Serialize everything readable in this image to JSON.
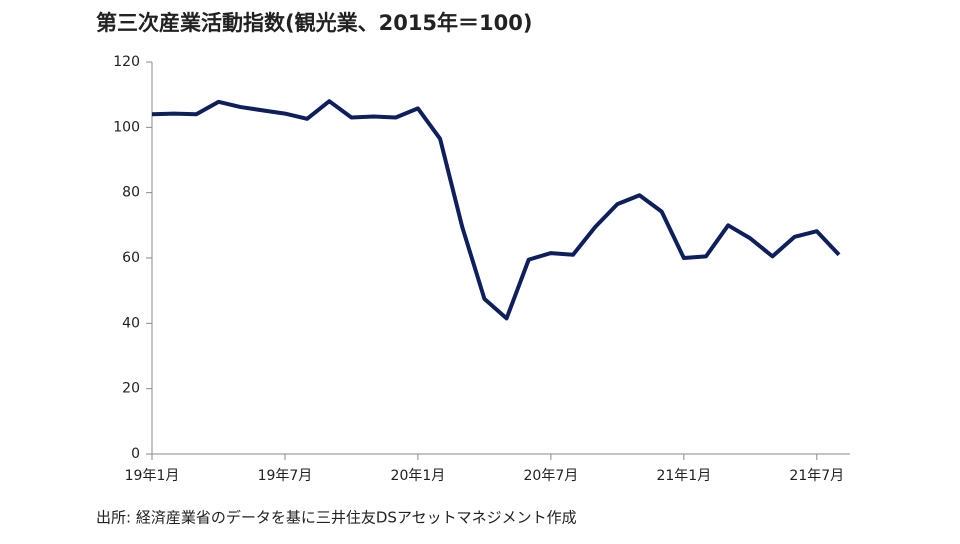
{
  "chart_data": {
    "type": "line",
    "title": "第三次産業活動指数(観光業、2015年＝100)",
    "source": "出所: 経済産業省のデータを基に三井住友DSアセットマネジメント作成",
    "categories": [
      "19年1月",
      null,
      null,
      null,
      null,
      null,
      "19年7月",
      null,
      null,
      null,
      null,
      null,
      "20年1月",
      null,
      null,
      null,
      null,
      null,
      "20年7月",
      null,
      null,
      null,
      null,
      null,
      "21年1月",
      null,
      null,
      null,
      null,
      null,
      "21年7月",
      null
    ],
    "series": [
      {
        "name": "観光業",
        "color": "#0d1f5c",
        "values": [
          104,
          104.2,
          104,
          107.8,
          106.2,
          105.2,
          104.2,
          102.6,
          108,
          103,
          103.3,
          103,
          105.8,
          96.5,
          69.5,
          47.5,
          41.5,
          59.5,
          61.5,
          61,
          69.5,
          76.5,
          79.2,
          74.2,
          60,
          60.5,
          70,
          66,
          60.5,
          66.5,
          68.2,
          61
        ]
      }
    ],
    "ylim": [
      0,
      120
    ],
    "yticks": [
      0,
      20,
      40,
      60,
      80,
      100,
      120
    ],
    "grid": false
  }
}
